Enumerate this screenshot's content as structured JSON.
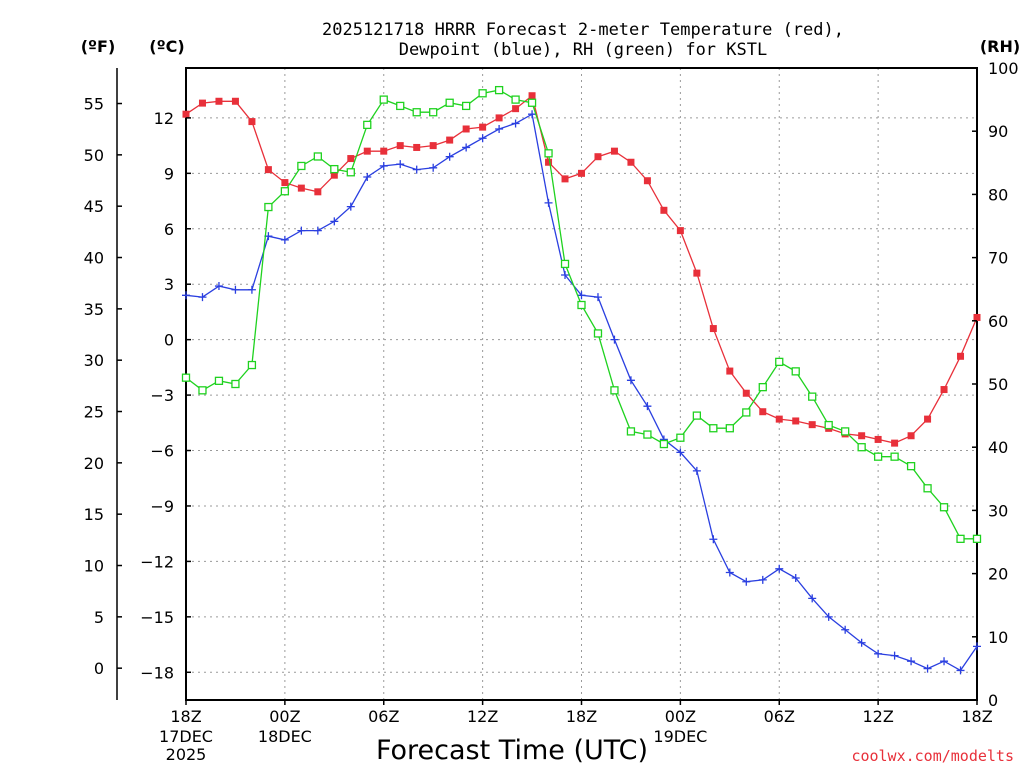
{
  "chart_data": {
    "type": "line",
    "title_line1": "2025121718 HRRR Forecast 2-meter Temperature (red),",
    "title_line2": "Dewpoint (blue), RH (green) for KSTL",
    "xlabel": "Forecast Time (UTC)",
    "credit": "coolwx.com/modelts",
    "units": {
      "fahrenheit": "(ºF)",
      "celsius": "(ºC)",
      "rh": "(RH)"
    },
    "x_range_hours": [
      0,
      48
    ],
    "y_celsius_range": [
      -19.5,
      14.7
    ],
    "y_rh_range": [
      0,
      100
    ],
    "x_ticks": [
      {
        "h": 0,
        "line1": "18Z",
        "line2": "17DEC",
        "line3": "2025"
      },
      {
        "h": 6,
        "line1": "00Z",
        "line2": "18DEC",
        "line3": ""
      },
      {
        "h": 12,
        "line1": "06Z",
        "line2": "",
        "line3": ""
      },
      {
        "h": 18,
        "line1": "12Z",
        "line2": "",
        "line3": ""
      },
      {
        "h": 24,
        "line1": "18Z",
        "line2": "",
        "line3": ""
      },
      {
        "h": 30,
        "line1": "00Z",
        "line2": "19DEC",
        "line3": ""
      },
      {
        "h": 36,
        "line1": "06Z",
        "line2": "",
        "line3": ""
      },
      {
        "h": 42,
        "line1": "12Z",
        "line2": "",
        "line3": ""
      },
      {
        "h": 48,
        "line1": "18Z",
        "line2": "",
        "line3": ""
      }
    ],
    "celsius_ticks": [
      12,
      9,
      6,
      3,
      0,
      -3,
      -6,
      -9,
      -12,
      -15,
      -18
    ],
    "celsius_tick_labels": [
      "12",
      "9",
      "6",
      "3",
      "0",
      "−3",
      "−6",
      "−9",
      "−12",
      "−15",
      "−18"
    ],
    "fahrenheit_ticks": [
      55,
      50,
      45,
      40,
      35,
      30,
      25,
      20,
      15,
      10,
      5,
      0
    ],
    "rh_ticks": [
      100,
      90,
      80,
      70,
      60,
      50,
      40,
      30,
      20,
      10,
      0
    ],
    "series": [
      {
        "name": "Temperature",
        "units": "C",
        "color": "#e8303a",
        "marker": "filled-square",
        "values": [
          12.2,
          12.8,
          12.9,
          12.9,
          11.8,
          9.2,
          8.5,
          8.2,
          8.0,
          8.9,
          9.8,
          10.2,
          10.2,
          10.5,
          10.4,
          10.5,
          10.8,
          11.4,
          11.5,
          12.0,
          12.5,
          13.2,
          9.6,
          8.7,
          9.0,
          9.9,
          10.2,
          9.6,
          8.6,
          7.0,
          5.9,
          3.6,
          0.6,
          -1.7,
          -2.9,
          -3.9,
          -4.3,
          -4.4,
          -4.6,
          -4.8,
          -5.1,
          -5.2,
          -5.4,
          -5.6,
          -5.2,
          -4.3,
          -2.7,
          -0.9,
          1.2
        ]
      },
      {
        "name": "Dewpoint",
        "units": "C",
        "color": "#2a3fe0",
        "marker": "plus",
        "values": [
          2.4,
          2.3,
          2.9,
          2.7,
          2.7,
          5.6,
          5.4,
          5.9,
          5.9,
          6.4,
          7.2,
          8.8,
          9.4,
          9.5,
          9.2,
          9.3,
          9.9,
          10.4,
          10.9,
          11.4,
          11.7,
          12.2,
          7.4,
          3.5,
          2.4,
          2.3,
          0.0,
          -2.2,
          -3.6,
          -5.4,
          -6.1,
          -7.1,
          -10.8,
          -12.6,
          -13.1,
          -13.0,
          -12.4,
          -12.9,
          -14.0,
          -15.0,
          -15.7,
          -16.4,
          -17.0,
          -17.1,
          -17.4,
          -17.8,
          -17.4,
          -17.9,
          -16.6
        ]
      },
      {
        "name": "RH",
        "units": "%",
        "color": "#1fd21f",
        "marker": "open-square",
        "values": [
          51,
          49,
          50.5,
          50,
          53,
          78,
          80.5,
          84.5,
          86,
          84,
          83.5,
          91,
          95,
          94,
          93,
          93,
          94.5,
          94,
          96,
          96.5,
          95,
          94.5,
          86.5,
          69,
          62.5,
          58,
          49,
          42.5,
          42,
          40.5,
          41.5,
          45,
          43,
          43,
          45.5,
          49.5,
          53.5,
          52,
          48,
          43.5,
          42.5,
          40,
          38.5,
          38.5,
          37,
          33.5,
          30.5,
          25.5,
          25.5
        ]
      }
    ]
  }
}
